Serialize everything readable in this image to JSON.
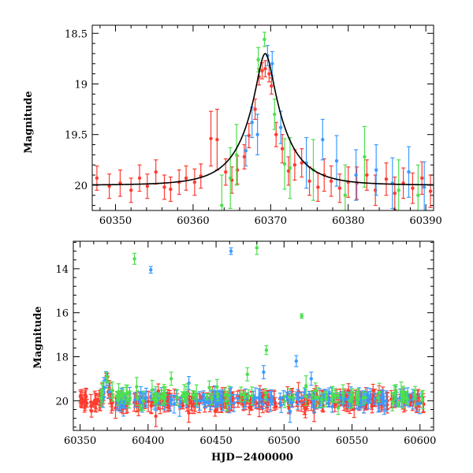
{
  "chart_data": [
    {
      "type": "scatter",
      "xlabel": "",
      "ylabel": "Magnitude",
      "xlim": [
        60347,
        60391
      ],
      "ylim": [
        20.25,
        18.42
      ],
      "y_inverted": true,
      "x_ticks": [
        60350,
        60360,
        60370,
        60380,
        60390
      ],
      "y_ticks": [
        18.5,
        19,
        19.5,
        20
      ],
      "x_tick_labels": [
        "60350",
        "60360",
        "60370",
        "60380",
        "60390"
      ],
      "y_tick_labels": [
        "18.5",
        "19",
        "19.5",
        "20"
      ],
      "series": [
        {
          "color": "#ff3b2f",
          "points": [
            {
              "x": 60347.6,
              "y": 19.93,
              "err": 0.12
            },
            {
              "x": 60349.2,
              "y": 20.01,
              "err": 0.12
            },
            {
              "x": 60350.6,
              "y": 19.98,
              "err": 0.13
            },
            {
              "x": 60352.0,
              "y": 20.05,
              "err": 0.12
            },
            {
              "x": 60353.1,
              "y": 19.93,
              "err": 0.13
            },
            {
              "x": 60354.1,
              "y": 20.01,
              "err": 0.12
            },
            {
              "x": 60355.2,
              "y": 19.87,
              "err": 0.12
            },
            {
              "x": 60356.3,
              "y": 20.02,
              "err": 0.12
            },
            {
              "x": 60357.1,
              "y": 20.04,
              "err": 0.12
            },
            {
              "x": 60358.2,
              "y": 19.97,
              "err": 0.12
            },
            {
              "x": 60359.1,
              "y": 19.93,
              "err": 0.12
            },
            {
              "x": 60360.2,
              "y": 19.97,
              "err": 0.13
            },
            {
              "x": 60361.0,
              "y": 19.91,
              "err": 0.12
            },
            {
              "x": 60362.3,
              "y": 19.54,
              "err": 0.27
            },
            {
              "x": 60363.1,
              "y": 19.55,
              "err": 0.3
            },
            {
              "x": 60364.2,
              "y": 19.87,
              "err": 0.13
            },
            {
              "x": 60365.0,
              "y": 19.95,
              "err": 0.13
            },
            {
              "x": 60365.7,
              "y": 19.85,
              "err": 0.14
            },
            {
              "x": 60366.6,
              "y": 19.72,
              "err": 0.12
            },
            {
              "x": 60367.2,
              "y": 19.51,
              "err": 0.12
            },
            {
              "x": 60368.0,
              "y": 19.25,
              "err": 0.1
            },
            {
              "x": 60368.5,
              "y": 18.93,
              "err": 0.08
            },
            {
              "x": 60368.9,
              "y": 18.87,
              "err": 0.08
            },
            {
              "x": 60369.3,
              "y": 18.85,
              "err": 0.08
            },
            {
              "x": 60369.8,
              "y": 18.9,
              "err": 0.08
            },
            {
              "x": 60370.1,
              "y": 19.02,
              "err": 0.08
            },
            {
              "x": 60370.7,
              "y": 19.5,
              "err": 0.12
            },
            {
              "x": 60371.5,
              "y": 19.64,
              "err": 0.14
            },
            {
              "x": 60372.3,
              "y": 19.86,
              "err": 0.14
            },
            {
              "x": 60373.1,
              "y": 19.8,
              "err": 0.15
            },
            {
              "x": 60374.0,
              "y": 19.78,
              "err": 0.14
            },
            {
              "x": 60375.0,
              "y": 19.96,
              "err": 0.14
            },
            {
              "x": 60376.1,
              "y": 20.02,
              "err": 0.14
            },
            {
              "x": 60376.9,
              "y": 19.9,
              "err": 0.16
            },
            {
              "x": 60377.8,
              "y": 19.96,
              "err": 0.15
            },
            {
              "x": 60378.9,
              "y": 20.03,
              "err": 0.14
            },
            {
              "x": 60380.0,
              "y": 19.97,
              "err": 0.15
            },
            {
              "x": 60381.1,
              "y": 19.98,
              "err": 0.16
            },
            {
              "x": 60382.4,
              "y": 19.9,
              "err": 0.15
            },
            {
              "x": 60383.5,
              "y": 20.05,
              "err": 0.15
            },
            {
              "x": 60384.9,
              "y": 19.94,
              "err": 0.16
            },
            {
              "x": 60386.0,
              "y": 20.08,
              "err": 0.16
            },
            {
              "x": 60387.1,
              "y": 19.98,
              "err": 0.15
            },
            {
              "x": 60388.3,
              "y": 20.03,
              "err": 0.15
            },
            {
              "x": 60389.5,
              "y": 19.93,
              "err": 0.16
            },
            {
              "x": 60390.6,
              "y": 20.06,
              "err": 0.16
            }
          ]
        },
        {
          "color": "#3b9bff",
          "points": [
            {
              "x": 60366.8,
              "y": 19.66,
              "err": 0.15
            },
            {
              "x": 60367.6,
              "y": 19.38,
              "err": 0.15
            },
            {
              "x": 60368.3,
              "y": 19.5,
              "err": 0.2
            },
            {
              "x": 60369.6,
              "y": 18.72,
              "err": 0.1
            },
            {
              "x": 60370.2,
              "y": 18.8,
              "err": 0.12
            },
            {
              "x": 60371.3,
              "y": 19.43,
              "err": 0.16
            },
            {
              "x": 60374.6,
              "y": 19.78,
              "err": 0.25
            },
            {
              "x": 60376.7,
              "y": 19.55,
              "err": 0.2
            },
            {
              "x": 60378.5,
              "y": 19.76,
              "err": 0.25
            },
            {
              "x": 60381.0,
              "y": 19.9,
              "err": 0.25
            },
            {
              "x": 60383.6,
              "y": 19.85,
              "err": 0.25
            },
            {
              "x": 60385.7,
              "y": 19.98,
              "err": 0.25
            },
            {
              "x": 60387.8,
              "y": 19.87,
              "err": 0.25
            },
            {
              "x": 60389.8,
              "y": 20.02,
              "err": 0.25
            }
          ]
        },
        {
          "color": "#4ce04c",
          "points": [
            {
              "x": 60363.7,
              "y": 20.2,
              "err": 0.3
            },
            {
              "x": 60364.8,
              "y": 19.93,
              "err": 0.3
            },
            {
              "x": 60365.6,
              "y": 19.7,
              "err": 0.3
            },
            {
              "x": 60368.4,
              "y": 18.76,
              "err": 0.12
            },
            {
              "x": 60369.2,
              "y": 18.56,
              "err": 0.07
            },
            {
              "x": 60370.5,
              "y": 19.3,
              "err": 0.15
            },
            {
              "x": 60371.8,
              "y": 19.79,
              "err": 0.25
            },
            {
              "x": 60372.5,
              "y": 19.83,
              "err": 0.3
            },
            {
              "x": 60375.5,
              "y": 19.85,
              "err": 0.3
            },
            {
              "x": 60379.6,
              "y": 20.1,
              "err": 0.3
            },
            {
              "x": 60382.1,
              "y": 19.72,
              "err": 0.3
            },
            {
              "x": 60386.5,
              "y": 20.05,
              "err": 0.3
            },
            {
              "x": 60389.0,
              "y": 20.1,
              "err": 0.3
            }
          ]
        }
      ],
      "model_curve": {
        "color": "#000000",
        "baseline_mag": 20.0,
        "peak_x": 60369.3,
        "peak_mag": 18.7
      }
    },
    {
      "type": "scatter",
      "xlabel": "HJD−2400000",
      "ylabel": "Magnitude",
      "xlim": [
        60345,
        60610
      ],
      "ylim": [
        21.35,
        12.75
      ],
      "y_inverted": true,
      "x_ticks": [
        60350,
        60400,
        60450,
        60500,
        60550,
        60600
      ],
      "y_ticks": [
        14,
        16,
        18,
        20
      ],
      "x_tick_labels": [
        "60350",
        "60400",
        "60450",
        "60500",
        "60550",
        "60600"
      ],
      "y_tick_labels": [
        "14",
        "16",
        "18",
        "20"
      ],
      "series": [
        {
          "color": "#ff3b2f",
          "band": {
            "x_from": 60350,
            "x_to": 60605,
            "baseline": 20.0,
            "n": 340
          }
        },
        {
          "color": "#3b9bff",
          "band": {
            "x_from": 60365,
            "x_to": 60605,
            "baseline": 19.95,
            "n": 170
          },
          "points": [
            {
              "x": 60402,
              "y": 14.05,
              "err": 0.15
            },
            {
              "x": 60461,
              "y": 13.2,
              "err": 0.15
            },
            {
              "x": 60509,
              "y": 18.2,
              "err": 0.25
            },
            {
              "x": 60430,
              "y": 19.2,
              "err": 0.3
            },
            {
              "x": 60485,
              "y": 18.7,
              "err": 0.3
            },
            {
              "x": 60520,
              "y": 19.0,
              "err": 0.3
            }
          ]
        },
        {
          "color": "#4ce04c",
          "band": {
            "x_from": 60365,
            "x_to": 60605,
            "baseline": 19.8,
            "n": 110
          },
          "points": [
            {
              "x": 60390,
              "y": 13.55,
              "err": 0.25
            },
            {
              "x": 60480,
              "y": 13.05,
              "err": 0.3
            },
            {
              "x": 60513,
              "y": 16.15,
              "err": 0.1
            },
            {
              "x": 60487,
              "y": 17.7,
              "err": 0.2
            },
            {
              "x": 60417,
              "y": 19.0,
              "err": 0.3
            },
            {
              "x": 60445,
              "y": 19.4,
              "err": 0.3
            },
            {
              "x": 60473,
              "y": 18.8,
              "err": 0.3
            }
          ]
        }
      ]
    }
  ]
}
